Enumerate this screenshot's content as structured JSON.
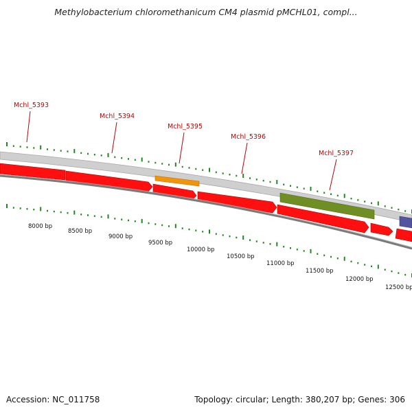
{
  "title": "Methylobacterium chloromethanicum CM4 plasmid pMCHL01, compl...",
  "footer": {
    "accession_label": "Accession:",
    "accession": "NC_011758",
    "topology_label": "Topology:",
    "topology": "circular",
    "length_label": "Length:",
    "length": "380,207 bp",
    "genes_label": "Genes:",
    "genes": "306"
  },
  "gene_labels": [
    "Mchl_5393",
    "Mchl_5394",
    "Mchl_5395",
    "Mchl_5396",
    "Mchl_5397"
  ],
  "ruler_labels": [
    "8000 bp",
    "8500 bp",
    "9000 bp",
    "9500 bp",
    "10000 bp",
    "10500 bp",
    "11000 bp",
    "11500 bp",
    "12000 bp",
    "12500 bp"
  ],
  "colors": {
    "label_red": "#c00000",
    "gene_red": "#ff0000",
    "orange": "#f0900a",
    "olive": "#6b8e23",
    "purple": "#5050a0",
    "tick_green": "#1e8a1e",
    "backbone_gray": "#c8c8c8",
    "outline_gray": "#777777"
  }
}
